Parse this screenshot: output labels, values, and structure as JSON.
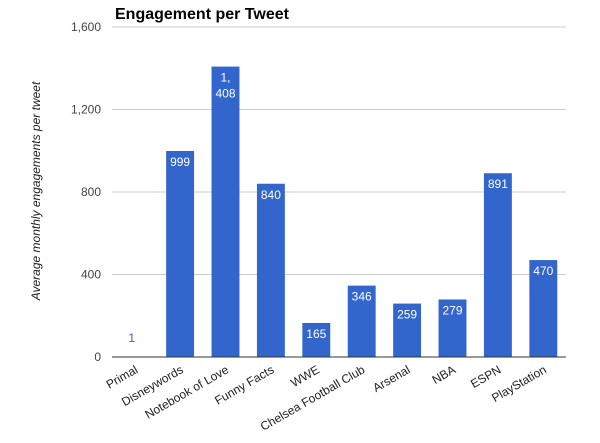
{
  "chart_data": {
    "type": "bar",
    "title": "Engagement per Tweet",
    "xlabel": "",
    "ylabel": "Average monthly engagements per tweet",
    "ylim": [
      0,
      1600
    ],
    "yticks": [
      0,
      400,
      800,
      1200,
      1600
    ],
    "ytick_labels": [
      "0",
      "400",
      "800",
      "1,200",
      "1,600"
    ],
    "grid": true,
    "legend": "none",
    "bar_color": "#3366cc",
    "label_color_inside": "#ffffff",
    "label_color_outside": "#3366cc",
    "categories": [
      "Primal",
      "Disneywords",
      "Notebook of Love",
      "Funny Facts",
      "WWE",
      "Chelsea Football Club",
      "Arsenal",
      "NBA",
      "ESPN",
      "PlayStation"
    ],
    "values": [
      1,
      999,
      1408,
      840,
      165,
      346,
      259,
      279,
      891,
      470
    ],
    "data_labels": [
      "1",
      "999",
      "1,408",
      "840",
      "165",
      "346",
      "259",
      "279",
      "891",
      "470"
    ]
  }
}
